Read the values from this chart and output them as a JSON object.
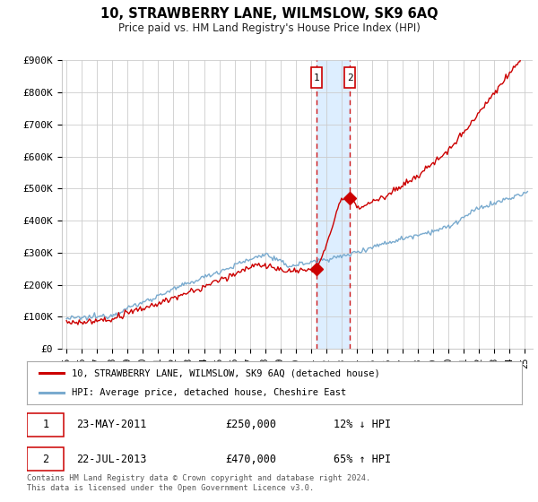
{
  "title": "10, STRAWBERRY LANE, WILMSLOW, SK9 6AQ",
  "subtitle": "Price paid vs. HM Land Registry's House Price Index (HPI)",
  "ylabel_ticks": [
    "£0",
    "£100K",
    "£200K",
    "£300K",
    "£400K",
    "£500K",
    "£600K",
    "£700K",
    "£800K",
    "£900K"
  ],
  "ytick_values": [
    0,
    100000,
    200000,
    300000,
    400000,
    500000,
    600000,
    700000,
    800000,
    900000
  ],
  "ylim": [
    0,
    900000
  ],
  "xlim_left": 1994.7,
  "xlim_right": 2025.5,
  "sale1": {
    "date_num": 2011.38,
    "price": 250000,
    "label": "1",
    "date_str": "23-MAY-2011",
    "pct": "12% ↓ HPI"
  },
  "sale2": {
    "date_num": 2013.55,
    "price": 470000,
    "label": "2",
    "date_str": "22-JUL-2013",
    "pct": "65% ↑ HPI"
  },
  "legend_line1": "10, STRAWBERRY LANE, WILMSLOW, SK9 6AQ (detached house)",
  "legend_line2": "HPI: Average price, detached house, Cheshire East",
  "footer": "Contains HM Land Registry data © Crown copyright and database right 2024.\nThis data is licensed under the Open Government Licence v3.0.",
  "line_color_red": "#cc0000",
  "line_color_blue": "#7aabcf",
  "shaded_color": "#ddeeff",
  "background_color": "#ffffff",
  "grid_color": "#cccccc",
  "sale_box_border": "#cc0000",
  "xtick_years": [
    1995,
    1996,
    1997,
    1998,
    1999,
    2000,
    2001,
    2002,
    2003,
    2004,
    2005,
    2006,
    2007,
    2008,
    2009,
    2010,
    2011,
    2012,
    2013,
    2014,
    2015,
    2016,
    2017,
    2018,
    2019,
    2020,
    2021,
    2022,
    2023,
    2024,
    2025
  ]
}
